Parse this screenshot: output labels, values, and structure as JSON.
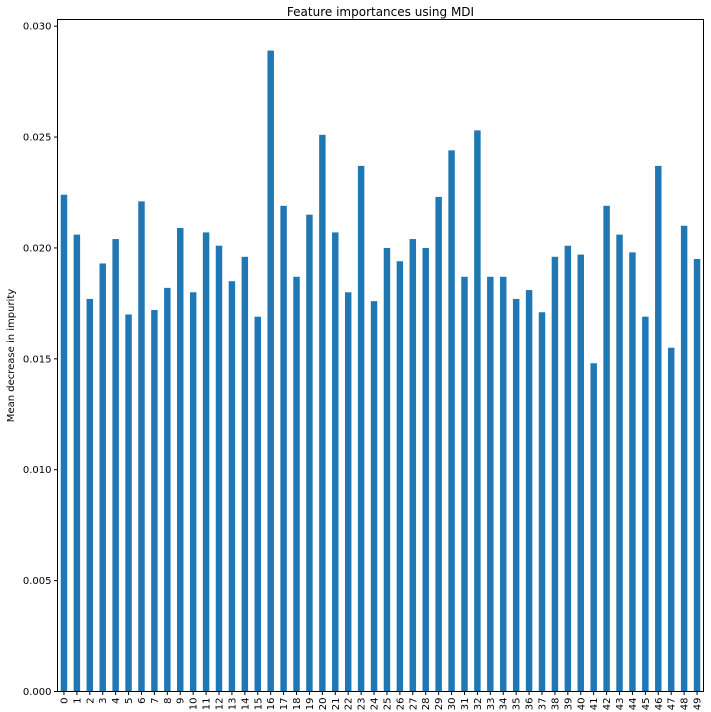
{
  "chart_data": {
    "type": "bar",
    "title": "Feature importances using MDI",
    "xlabel": "",
    "ylabel": "Mean decrease in impurity",
    "ylim": [
      0,
      0.0303
    ],
    "yticks": [
      "0.000",
      "0.005",
      "0.010",
      "0.015",
      "0.020",
      "0.025",
      "0.030"
    ],
    "categories": [
      "0",
      "1",
      "2",
      "3",
      "4",
      "5",
      "6",
      "7",
      "8",
      "9",
      "10",
      "11",
      "12",
      "13",
      "14",
      "15",
      "16",
      "17",
      "18",
      "19",
      "20",
      "21",
      "22",
      "23",
      "24",
      "25",
      "26",
      "27",
      "28",
      "29",
      "30",
      "31",
      "32",
      "33",
      "34",
      "35",
      "36",
      "37",
      "38",
      "39",
      "40",
      "41",
      "42",
      "43",
      "44",
      "45",
      "46",
      "47",
      "48",
      "49"
    ],
    "values": [
      0.0224,
      0.0206,
      0.0177,
      0.0193,
      0.0204,
      0.017,
      0.0221,
      0.0172,
      0.0182,
      0.0209,
      0.018,
      0.0207,
      0.0201,
      0.0185,
      0.0196,
      0.0169,
      0.0289,
      0.0219,
      0.0187,
      0.0215,
      0.0251,
      0.0207,
      0.018,
      0.0237,
      0.0176,
      0.02,
      0.0194,
      0.0204,
      0.02,
      0.0223,
      0.0244,
      0.0187,
      0.0253,
      0.0187,
      0.0187,
      0.0177,
      0.0181,
      0.0171,
      0.0196,
      0.0201,
      0.0197,
      0.0148,
      0.0219,
      0.0206,
      0.0198,
      0.0169,
      0.0237,
      0.0155,
      0.021,
      0.0195
    ],
    "bar_color": "#1f77b4",
    "grid": false,
    "legend": false
  }
}
